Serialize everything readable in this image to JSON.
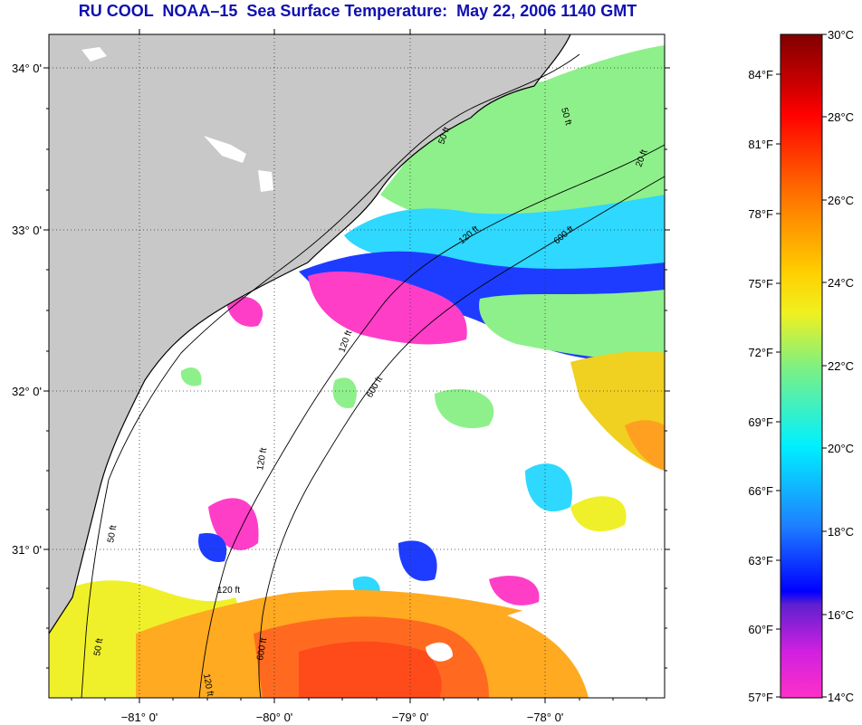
{
  "title": "RU COOL  NOAA–15  Sea Surface Temperature:  May 22, 2006 1140 GMT",
  "map": {
    "lat_labels": [
      "34° 0'",
      "33° 0'",
      "32° 0'",
      "31° 0'"
    ],
    "lon_labels": [
      "−81° 0'",
      "−80° 0'",
      "−79° 0'",
      "−78° 0'"
    ],
    "contour_labels": [
      "50 ft",
      "120 ft",
      "600 ft",
      "50 ft",
      "120 ft",
      "600 ft",
      "120 ft",
      "50 ft",
      "120 ft",
      "600 ft",
      "50 ft",
      "20 ft",
      "120 ft"
    ],
    "colors": {
      "land": "#c8c8c8",
      "cloud": "#ffffff",
      "warm": "#ff7820",
      "hot": "#ff5a1e",
      "green": "#8ef08a",
      "cyan": "#2ed8ff",
      "blue": "#1e3cff",
      "magenta": "#ff3ec8",
      "yellow": "#f0f02a"
    }
  },
  "colorbar": {
    "celsius": [
      "30°C",
      "28°C",
      "26°C",
      "24°C",
      "22°C",
      "20°C",
      "18°C",
      "16°C",
      "14°C"
    ],
    "fahrenheit": [
      "84°F",
      "81°F",
      "78°F",
      "75°F",
      "72°F",
      "69°F",
      "66°F",
      "63°F",
      "60°F",
      "57°F"
    ]
  }
}
